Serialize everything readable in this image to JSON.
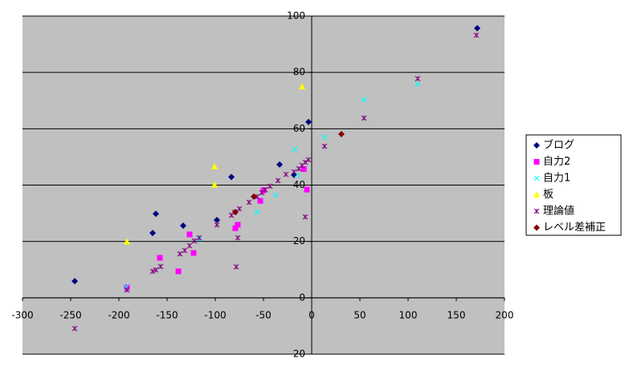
{
  "chart_data": {
    "type": "scatter",
    "xlim": [
      -300,
      200
    ],
    "xticks": [
      -300,
      -250,
      -200,
      -150,
      -100,
      -50,
      0,
      50,
      100,
      150,
      200
    ],
    "ylim": [
      -20,
      100
    ],
    "yticks": [
      -20,
      0,
      20,
      40,
      60,
      80,
      100
    ],
    "grid": true,
    "legend": "right",
    "series": [
      {
        "name": "ブログ",
        "color": "#000080",
        "marker": "diamond",
        "x": [
          171.7,
          -3.3,
          -33.3,
          -83.3,
          -18.3,
          -161.7,
          -165,
          -133.3,
          -98.3,
          -245.8
        ],
        "y": [
          95.7,
          62.4,
          47.3,
          42.9,
          43.6,
          29.8,
          23,
          25.6,
          27.6,
          5.9
        ]
      },
      {
        "name": "自力2",
        "color": "#ff00ff",
        "marker": "square",
        "x": [
          -8.3,
          -5,
          -50,
          -53.3,
          -76.7,
          -79.2,
          -126.7,
          -122.5,
          -157.5,
          -138.3,
          -191.7
        ],
        "y": [
          45.7,
          38.4,
          38.1,
          34.4,
          25.9,
          24.7,
          22.5,
          15.9,
          14.2,
          9.4,
          3.7
        ]
      },
      {
        "name": "自力1",
        "color": "#00ffff",
        "marker": "x",
        "x": [
          110,
          54.2,
          13.3,
          -17.5,
          -15,
          -37.5,
          -56.7,
          -116.7,
          -192.5
        ],
        "y": [
          75.8,
          70.3,
          57,
          52.7,
          43.6,
          36.4,
          30.4,
          21,
          3.9
        ]
      },
      {
        "name": "板",
        "color": "#ffff00",
        "marker": "triangle",
        "x": [
          -10,
          -100.8,
          -100.8,
          -191.7
        ],
        "y": [
          75,
          46.6,
          40.1,
          19.9
        ]
      },
      {
        "name": "理論値",
        "color": "#800080",
        "marker": "star",
        "x": [
          170.8,
          110,
          54.2,
          13.3,
          -3.3,
          -6.7,
          -10,
          -13.3,
          -18.3,
          -26.7,
          -35,
          -43.3,
          -48.3,
          -51.7,
          -56.7,
          -65,
          -75,
          -80,
          -83.3,
          -98.3,
          -116.7,
          -121.7,
          -126.7,
          -131.7,
          -136.7,
          -156.7,
          -161.7,
          -165,
          -191.7,
          -245.8,
          -6.7,
          -76.7,
          -78.3
        ],
        "y": [
          93.2,
          77.8,
          63.8,
          53.8,
          49,
          48.1,
          47,
          45.8,
          44.7,
          43.8,
          41.6,
          39.6,
          38.4,
          37.3,
          35.9,
          33.9,
          31.6,
          30.4,
          29.3,
          25.9,
          21.3,
          20.2,
          18.5,
          16.8,
          15.6,
          11.1,
          9.9,
          9.4,
          2.8,
          -10.9,
          28.7,
          21.3,
          11
        ]
      },
      {
        "name": "レベル差補正",
        "color": "#800000",
        "marker": "diamond",
        "x": [
          30.8,
          -60,
          -79.2
        ],
        "y": [
          58.1,
          35.9,
          30.4
        ]
      }
    ]
  }
}
